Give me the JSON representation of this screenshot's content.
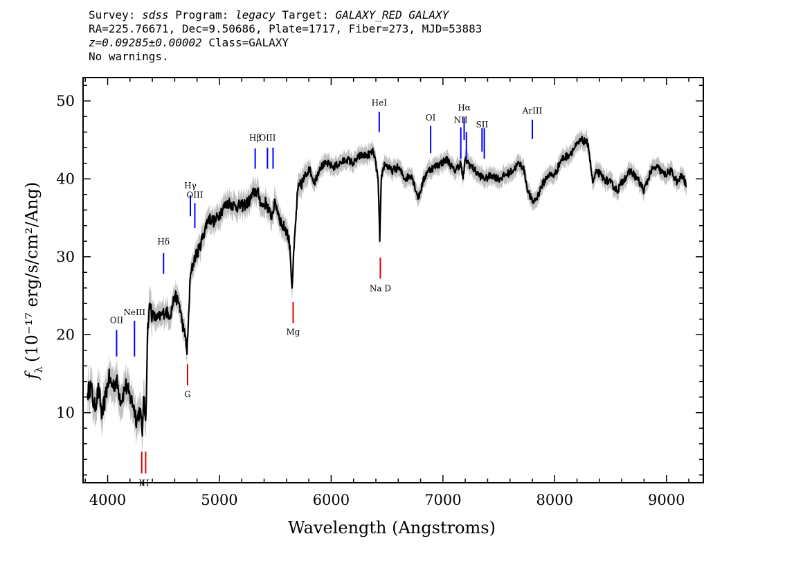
{
  "header": {
    "survey_key": "Survey:",
    "survey": "sdss",
    "program_key": "Program:",
    "program": "legacy",
    "target_key": "Target:",
    "target": "GALAXY_RED GALAXY",
    "line2": "RA=225.76671, Dec=9.50686, Plate=1717, Fiber=273, MJD=53883",
    "z_value": "z=0.09285±0.00002",
    "class_text": "Class=GALAXY",
    "warnings": "No warnings."
  },
  "colors": {
    "spectrum": "#000000",
    "error_band": "#c0c0c0",
    "emission": "#0000ff",
    "absorption": "#dd0000"
  },
  "chart_data": {
    "type": "line",
    "xlabel": "Wavelength (Angstroms)",
    "ylabel_f": "f",
    "ylabel_sub": "λ",
    "ylabel_rest": "(10⁻¹⁷ erg/s/cm²/Ang)",
    "xlim": [
      3780,
      9330
    ],
    "ylim": [
      1.0,
      53.0
    ],
    "xticks": [
      4000,
      5000,
      6000,
      7000,
      8000,
      9000
    ],
    "yticks": [
      10,
      20,
      30,
      40,
      50
    ],
    "grid": false,
    "series": [
      {
        "x": [
          3820,
          3850,
          3880,
          3920,
          3950,
          3980,
          4010,
          4040,
          4080,
          4120,
          4160,
          4200,
          4230,
          4260,
          4290,
          4310,
          4320,
          4340,
          4360,
          4380,
          4400,
          4440,
          4480,
          4520,
          4560,
          4600,
          4640,
          4680,
          4700,
          4710,
          4720,
          4740,
          4780,
          4820,
          4860,
          4900,
          4960,
          5020,
          5080,
          5140,
          5200,
          5260,
          5320,
          5350,
          5380,
          5420,
          5460,
          5500,
          5560,
          5600,
          5630,
          5650,
          5660,
          5700,
          5760,
          5800,
          5850,
          5900,
          5960,
          6020,
          6080,
          6140,
          6200,
          6260,
          6320,
          6380,
          6420,
          6435,
          6450,
          6480,
          6540,
          6600,
          6660,
          6720,
          6780,
          6820,
          6860,
          6920,
          6980,
          7040,
          7100,
          7160,
          7180,
          7200,
          7260,
          7320,
          7380,
          7440,
          7500,
          7560,
          7620,
          7680,
          7720,
          7760,
          7800,
          7840,
          7880,
          7940,
          8000,
          8060,
          8120,
          8180,
          8240,
          8300,
          8340,
          8380,
          8440,
          8500,
          8560,
          8620,
          8680,
          8740,
          8800,
          8860,
          8920,
          8980,
          9040,
          9100,
          9140,
          9180
        ],
        "y": [
          12.5,
          13.5,
          10.5,
          13.0,
          9.5,
          12.0,
          14.5,
          13.5,
          14.0,
          11.5,
          13.5,
          12.0,
          11.0,
          9.0,
          10.5,
          7.0,
          12.0,
          9.0,
          21.5,
          24.0,
          22.5,
          22.0,
          22.5,
          23.0,
          22.5,
          25.0,
          24.0,
          20.5,
          19.5,
          17.5,
          21.0,
          27.5,
          30.0,
          31.0,
          33.0,
          35.0,
          34.5,
          36.0,
          37.0,
          36.5,
          36.5,
          37.0,
          38.5,
          38.0,
          36.5,
          37.0,
          35.0,
          37.0,
          34.0,
          33.5,
          31.5,
          26.0,
          29.0,
          38.5,
          40.0,
          41.5,
          39.5,
          41.5,
          42.0,
          41.5,
          42.0,
          42.5,
          42.0,
          43.0,
          43.0,
          43.5,
          40.0,
          32.0,
          40.5,
          42.0,
          41.0,
          41.5,
          40.0,
          40.5,
          37.5,
          39.5,
          41.0,
          41.5,
          42.0,
          42.5,
          41.0,
          42.0,
          40.0,
          42.5,
          41.5,
          40.5,
          40.0,
          40.5,
          40.0,
          40.5,
          41.0,
          42.0,
          41.5,
          38.5,
          37.0,
          37.5,
          39.0,
          40.5,
          40.5,
          42.5,
          43.0,
          44.0,
          45.0,
          44.5,
          39.5,
          41.0,
          40.0,
          39.5,
          38.5,
          40.0,
          41.0,
          40.0,
          38.5,
          41.0,
          41.5,
          40.5,
          41.0,
          39.5,
          40.5,
          39.0
        ]
      }
    ],
    "emission_lines": [
      {
        "label": "OII",
        "x": 4080,
        "y_bot": 17.2,
        "y_top": 20.6,
        "label_y": 21.5
      },
      {
        "label": "NeIII",
        "x": 4240,
        "y_bot": 17.2,
        "y_top": 21.8,
        "label_y": 22.5
      },
      {
        "label": "Hδ",
        "x": 4500,
        "y_bot": 27.8,
        "y_top": 30.5,
        "label_y": 31.6
      },
      {
        "label": "Hγ",
        "x": 4740,
        "y_bot": 35.2,
        "y_top": 37.9,
        "label_y": 38.8
      },
      {
        "label": "OIII",
        "x": 4780,
        "y_bot": 33.7,
        "y_top": 36.9,
        "label_y": 37.6
      },
      {
        "label": "Hβ",
        "x": 5320,
        "y_bot": 41.3,
        "y_top": 43.9,
        "label_y": 44.9
      },
      {
        "label": "OIII",
        "x": 5430,
        "y_bot": 41.3,
        "y_top": 44.0,
        "label_y": 44.9
      },
      {
        "label": "OIII",
        "x": 5480,
        "y_bot": 41.3,
        "y_top": 44.0,
        "label_y": -1
      },
      {
        "label": "HeI",
        "x": 6430,
        "y_bot": 46.0,
        "y_top": 48.6,
        "label_y": 49.4
      },
      {
        "label": "OI",
        "x": 6890,
        "y_bot": 43.3,
        "y_top": 46.8,
        "label_y": 47.5
      },
      {
        "label": "NII",
        "x": 7160,
        "y_bot": 42.6,
        "y_top": 46.6,
        "label_y": 47.2
      },
      {
        "label": "Hα",
        "x": 7190,
        "y_bot": 45.0,
        "y_top": 47.9,
        "label_y": 48.8
      },
      {
        "label": "NII",
        "x": 7210,
        "y_bot": 42.6,
        "y_top": 46.0,
        "label_y": -1
      },
      {
        "label": "SII",
        "x": 7350,
        "y_bot": 43.5,
        "y_top": 46.5,
        "label_y": 46.6
      },
      {
        "label": "SII",
        "x": 7370,
        "y_bot": 42.6,
        "y_top": 46.5,
        "label_y": -1
      },
      {
        "label": "ArIII",
        "x": 7800,
        "y_bot": 45.1,
        "y_top": 47.6,
        "label_y": 48.4
      }
    ],
    "absorption_lines": [
      {
        "label": "K",
        "x": 4305,
        "y_bot": 2.2,
        "y_top": 5.0,
        "label_y": 0.6
      },
      {
        "label": "H",
        "x": 4340,
        "y_bot": 2.2,
        "y_top": 5.0,
        "label_y": 0.6
      },
      {
        "label": "G",
        "x": 4715,
        "y_bot": 13.5,
        "y_top": 16.2,
        "label_y": 12.0
      },
      {
        "label": "Mg",
        "x": 5660,
        "y_bot": 21.5,
        "y_top": 24.2,
        "label_y": 20.0
      },
      {
        "label": "Na D",
        "x": 6440,
        "y_bot": 27.2,
        "y_top": 29.9,
        "label_y": 25.6
      }
    ]
  }
}
